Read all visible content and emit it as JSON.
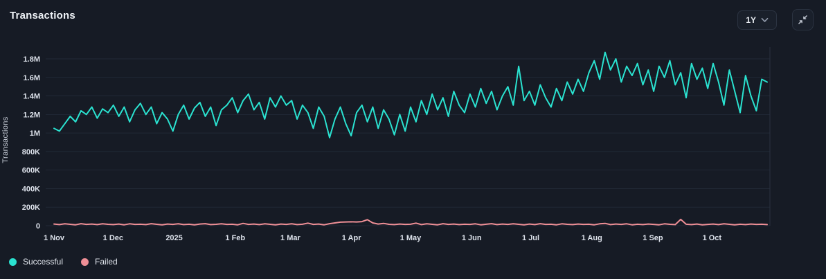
{
  "header": {
    "title": "Transactions",
    "range_selector": {
      "label": "1Y"
    },
    "collapse_icon": "arrows-collapse-inward"
  },
  "colors": {
    "background": "#161b25",
    "gridline": "#212936",
    "plot_right_border": "#2a3240",
    "tick_label": "#dde2eb",
    "successful": "#2ae2d0",
    "failed": "#ef8f96"
  },
  "legend": {
    "items": [
      {
        "label": "Successful",
        "color": "#2ae2d0"
      },
      {
        "label": "Failed",
        "color": "#ef8f96"
      }
    ]
  },
  "chart_data": {
    "type": "line",
    "title": "Transactions",
    "xlabel": "",
    "ylabel": "Transactions",
    "units": "millions",
    "ylim": [
      0,
      1.8
    ],
    "grid": "horizontal",
    "legend_position": "bottom-left",
    "y_ticks": [
      {
        "value": 0,
        "label": "0"
      },
      {
        "value": 0.2,
        "label": "200K"
      },
      {
        "value": 0.4,
        "label": "400K"
      },
      {
        "value": 0.6,
        "label": "600K"
      },
      {
        "value": 0.8,
        "label": "800K"
      },
      {
        "value": 1.0,
        "label": "1M"
      },
      {
        "value": 1.2,
        "label": "1.2M"
      },
      {
        "value": 1.4,
        "label": "1.4M"
      },
      {
        "value": 1.6,
        "label": "1.6M"
      },
      {
        "value": 1.8,
        "label": "1.8M"
      }
    ],
    "x_domain_days": [
      0,
      362
    ],
    "x_ticks": [
      {
        "day": 0,
        "label": "1 Nov"
      },
      {
        "day": 30,
        "label": "1 Dec"
      },
      {
        "day": 61,
        "label": "2025"
      },
      {
        "day": 92,
        "label": "1 Feb"
      },
      {
        "day": 120,
        "label": "1 Mar"
      },
      {
        "day": 151,
        "label": "1 Apr"
      },
      {
        "day": 181,
        "label": "1 May"
      },
      {
        "day": 212,
        "label": "1 Jun"
      },
      {
        "day": 242,
        "label": "1 Jul"
      },
      {
        "day": 273,
        "label": "1 Aug"
      },
      {
        "day": 304,
        "label": "1 Sep"
      },
      {
        "day": 334,
        "label": "1 Oct"
      }
    ],
    "series": [
      {
        "name": "Successful",
        "color": "#2ae2d0",
        "values": [
          1.05,
          1.02,
          1.1,
          1.18,
          1.12,
          1.24,
          1.2,
          1.28,
          1.16,
          1.26,
          1.22,
          1.3,
          1.18,
          1.28,
          1.12,
          1.25,
          1.32,
          1.2,
          1.28,
          1.1,
          1.22,
          1.15,
          1.02,
          1.2,
          1.3,
          1.15,
          1.27,
          1.33,
          1.18,
          1.28,
          1.08,
          1.25,
          1.3,
          1.38,
          1.22,
          1.35,
          1.42,
          1.25,
          1.33,
          1.15,
          1.38,
          1.28,
          1.4,
          1.3,
          1.35,
          1.15,
          1.3,
          1.22,
          1.05,
          1.28,
          1.18,
          0.95,
          1.15,
          1.28,
          1.1,
          0.97,
          1.22,
          1.3,
          1.12,
          1.28,
          1.05,
          1.25,
          1.15,
          0.98,
          1.2,
          1.02,
          1.28,
          1.12,
          1.35,
          1.2,
          1.42,
          1.25,
          1.38,
          1.18,
          1.45,
          1.3,
          1.22,
          1.42,
          1.28,
          1.48,
          1.32,
          1.45,
          1.25,
          1.4,
          1.5,
          1.3,
          1.72,
          1.35,
          1.45,
          1.3,
          1.52,
          1.38,
          1.28,
          1.48,
          1.35,
          1.55,
          1.42,
          1.58,
          1.45,
          1.65,
          1.78,
          1.58,
          1.87,
          1.68,
          1.8,
          1.55,
          1.72,
          1.62,
          1.75,
          1.52,
          1.68,
          1.45,
          1.72,
          1.6,
          1.78,
          1.52,
          1.65,
          1.38,
          1.75,
          1.58,
          1.7,
          1.48,
          1.75,
          1.55,
          1.3,
          1.68,
          1.45,
          1.22,
          1.62,
          1.4,
          1.24,
          1.58,
          1.55
        ]
      },
      {
        "name": "Failed",
        "color": "#ef8f96",
        "values": [
          0.018,
          0.012,
          0.02,
          0.015,
          0.01,
          0.022,
          0.014,
          0.018,
          0.012,
          0.02,
          0.015,
          0.012,
          0.018,
          0.01,
          0.02,
          0.014,
          0.016,
          0.012,
          0.022,
          0.015,
          0.01,
          0.018,
          0.014,
          0.02,
          0.012,
          0.016,
          0.01,
          0.018,
          0.022,
          0.012,
          0.015,
          0.02,
          0.014,
          0.016,
          0.01,
          0.025,
          0.014,
          0.018,
          0.012,
          0.02,
          0.015,
          0.01,
          0.018,
          0.014,
          0.02,
          0.012,
          0.016,
          0.028,
          0.014,
          0.018,
          0.01,
          0.022,
          0.03,
          0.038,
          0.04,
          0.042,
          0.04,
          0.044,
          0.065,
          0.03,
          0.018,
          0.025,
          0.015,
          0.012,
          0.018,
          0.014,
          0.016,
          0.028,
          0.012,
          0.02,
          0.015,
          0.01,
          0.022,
          0.014,
          0.018,
          0.012,
          0.016,
          0.014,
          0.02,
          0.01,
          0.016,
          0.022,
          0.012,
          0.018,
          0.014,
          0.02,
          0.015,
          0.01,
          0.018,
          0.012,
          0.022,
          0.014,
          0.016,
          0.01,
          0.02,
          0.015,
          0.012,
          0.018,
          0.014,
          0.016,
          0.01,
          0.02,
          0.025,
          0.012,
          0.018,
          0.014,
          0.02,
          0.01,
          0.016,
          0.012,
          0.018,
          0.014,
          0.01,
          0.02,
          0.015,
          0.012,
          0.068,
          0.016,
          0.012,
          0.018,
          0.01,
          0.014,
          0.018,
          0.012,
          0.02,
          0.015,
          0.01,
          0.016,
          0.012,
          0.018,
          0.014,
          0.016,
          0.012
        ]
      }
    ]
  }
}
